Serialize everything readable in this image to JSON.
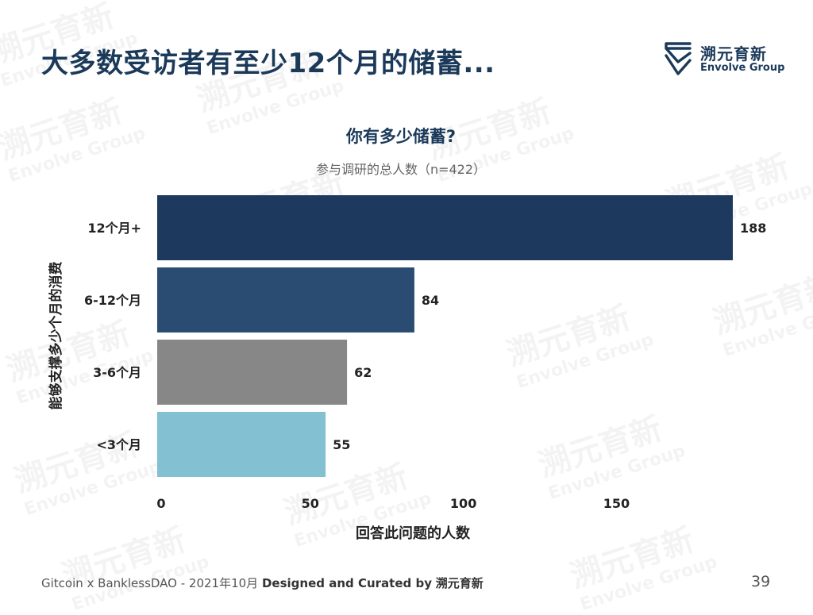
{
  "slide": {
    "title": "大多数受访者有至少12个月的储蓄...",
    "page_number": "39"
  },
  "logo": {
    "name_cn": "溯元育新",
    "name_en": "Envolve Group"
  },
  "watermark": {
    "text_cn": "溯元育新",
    "text_en": "Envolve Group"
  },
  "footer": {
    "prefix": "Gitcoin x BanklessDAO - 2021年10月",
    "designed": "Designed and Curated by",
    "brand": "溯元育新"
  },
  "chart_data": {
    "type": "bar",
    "orientation": "horizontal",
    "title": "你有多少储蓄?",
    "subtitle": "参与调研的总人数（n=422）",
    "ylabel": "能够支撑多少个月的消费",
    "xlabel": "回答此问题的人数",
    "categories": [
      "12个月+",
      "6-12个月",
      "3-6个月",
      "<3个月"
    ],
    "values": [
      188,
      84,
      62,
      55
    ],
    "colors": [
      "#1d3a5e",
      "#2a4c72",
      "#878787",
      "#82c0d2"
    ],
    "xlim": [
      0,
      188
    ],
    "xticks": [
      0,
      50,
      100,
      150
    ],
    "grid": false
  }
}
